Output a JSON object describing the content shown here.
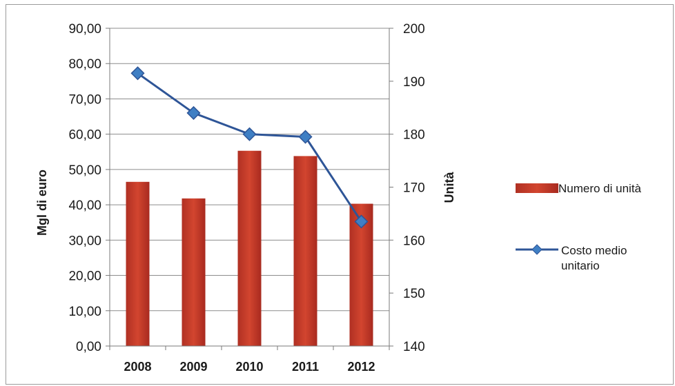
{
  "chart_data": {
    "type": "bar",
    "categories": [
      "2008",
      "2009",
      "2010",
      "2011",
      "2012"
    ],
    "series": [
      {
        "name": "Numero di unità",
        "type": "bar",
        "axis": "left",
        "values": [
          46.5,
          41.8,
          55.3,
          53.8,
          40.3
        ]
      },
      {
        "name": "Costo medio unitario",
        "type": "line",
        "axis": "right",
        "values": [
          191.5,
          184,
          180,
          179.5,
          163.5
        ]
      }
    ],
    "ylabel": "Mgl di euro",
    "y2label": "Unità",
    "ylim": [
      0,
      90
    ],
    "y2lim": [
      140,
      200
    ],
    "yticks": [
      "0,00",
      "10,00",
      "20,00",
      "30,00",
      "40,00",
      "50,00",
      "60,00",
      "70,00",
      "80,00",
      "90,00"
    ],
    "y2ticks": [
      "140",
      "150",
      "160",
      "170",
      "180",
      "190",
      "200"
    ],
    "grid": true,
    "legend_position": "right",
    "colors": {
      "bar": "#c0392b",
      "line": "#2e5597",
      "marker": "#3f7fc4"
    }
  }
}
